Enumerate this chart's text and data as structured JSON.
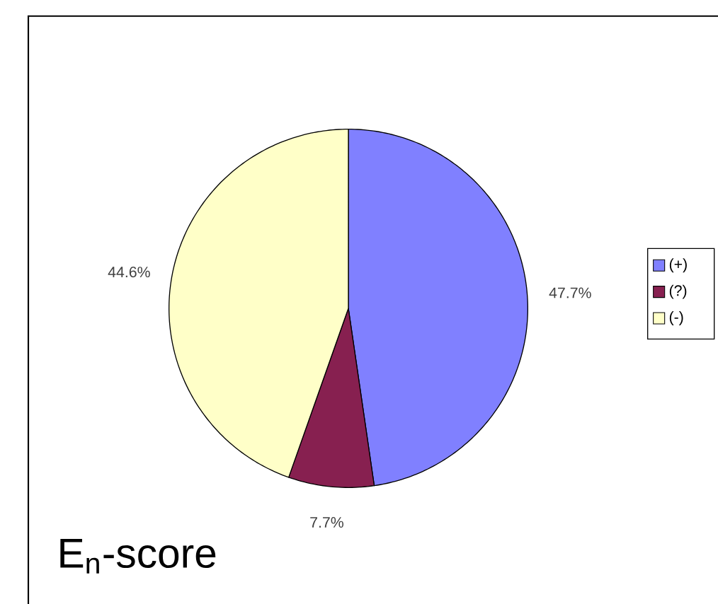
{
  "chart_data": {
    "type": "pie",
    "title": "E$_{n}$-score",
    "categories": [
      "(+)",
      "(?)",
      "(-)"
    ],
    "values": [
      47.7,
      7.7,
      44.6
    ],
    "colors": [
      "#8080ff",
      "#872050",
      "#ffffc8"
    ],
    "value_labels": [
      "47.7%",
      "7.7%",
      "44.6%"
    ],
    "legend": "right"
  }
}
